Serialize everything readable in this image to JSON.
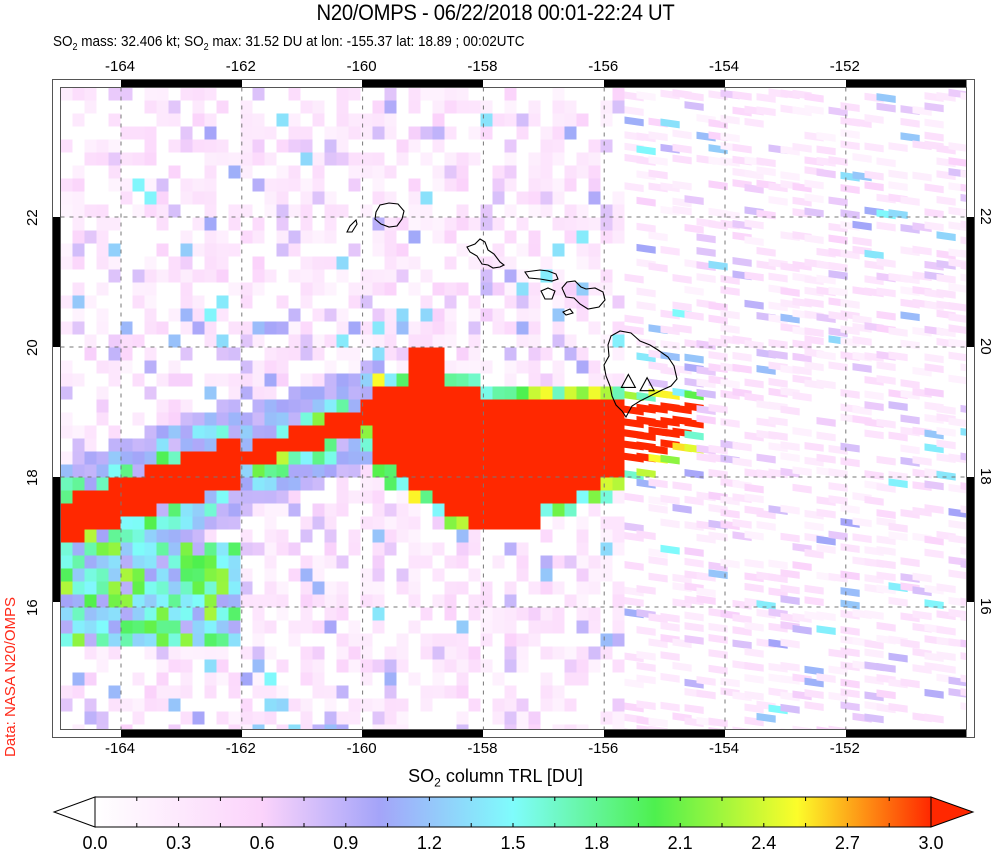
{
  "header": {
    "title": "N20/OMPS - 06/22/2018 00:01-22:24 UT",
    "subtitle_parts": {
      "so2_a": "SO",
      "sub_a": "2",
      "mass_text": " mass: 32.406 kt; SO",
      "sub_b": "2",
      "max_text": " max: 31.52 DU at lon: -155.37 lat: 18.89 ; 00:02UTC"
    }
  },
  "credit": {
    "text": "Data: NASA N20/OMPS",
    "color": "#ff2a1a"
  },
  "map": {
    "lon_range": [
      -165,
      -150
    ],
    "lat_range": [
      14.1,
      24
    ],
    "lon_ticks": [
      "-164",
      "-162",
      "-160",
      "-158",
      "-156",
      "-154",
      "-152"
    ],
    "lat_ticks": [
      "22",
      "20",
      "18",
      "16"
    ],
    "volcano_markers": [
      {
        "name": "Mauna Loa",
        "lon": -155.6,
        "lat": 19.47
      },
      {
        "name": "Kilauea",
        "lon": -155.29,
        "lat": 19.42
      }
    ]
  },
  "colorbar": {
    "title_a": "SO",
    "title_sub": "2",
    "title_b": " column TRL [DU]",
    "labels": [
      "0.0",
      "0.3",
      "0.6",
      "0.9",
      "1.2",
      "1.5",
      "1.8",
      "2.1",
      "2.4",
      "2.7",
      "3.0"
    ],
    "min": 0.0,
    "max": 3.0,
    "stops": [
      "#ffffff",
      "#fbd3fb",
      "#a4a4f9",
      "#7ffcfc",
      "#4ef04e",
      "#fcfc2a",
      "#ff2800"
    ]
  }
}
